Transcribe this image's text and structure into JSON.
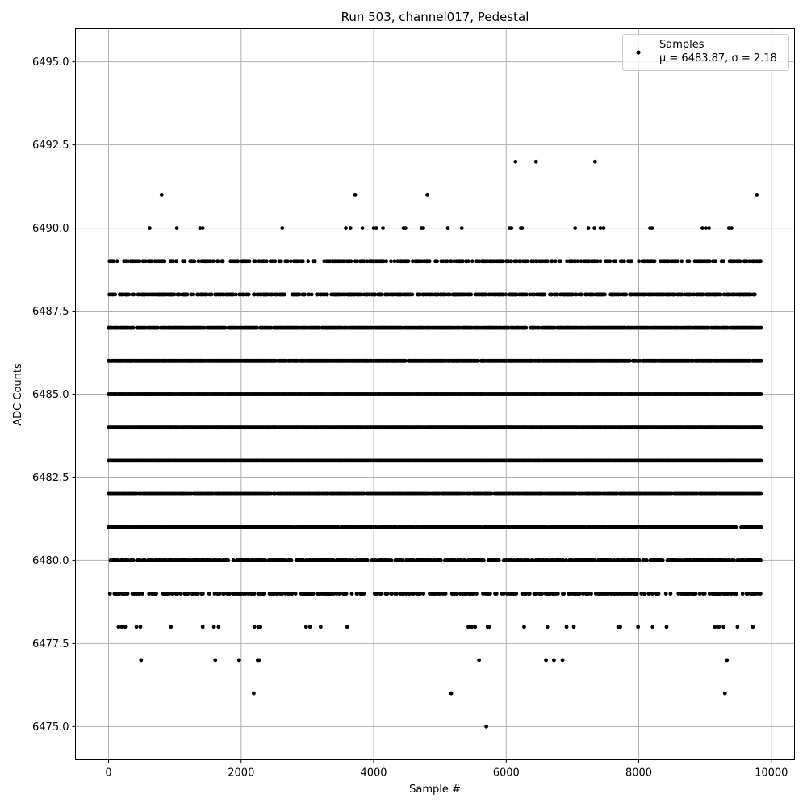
{
  "chart_data": {
    "type": "scatter",
    "title": "Run 503, channel017, Pedestal",
    "xlabel": "Sample #",
    "ylabel": "ADC Counts",
    "xlim": [
      -500,
      10350
    ],
    "ylim": [
      6474.0,
      6496.0
    ],
    "xticks": [
      0,
      2000,
      4000,
      6000,
      8000,
      10000
    ],
    "xtick_labels": [
      "0",
      "2000",
      "4000",
      "6000",
      "8000",
      "10000"
    ],
    "yticks": [
      6475.0,
      6477.5,
      6480.0,
      6482.5,
      6485.0,
      6487.5,
      6490.0,
      6492.5,
      6495.0
    ],
    "ytick_labels": [
      "6475.0",
      "6477.5",
      "6480.0",
      "6482.5",
      "6485.0",
      "6487.5",
      "6490.0",
      "6492.5",
      "6495.0"
    ],
    "grid": true,
    "legend_position": "top-right",
    "marker_color": "#000000",
    "series": [
      {
        "name": "Samples",
        "stats_label": "μ = 6483.87, σ = 2.18",
        "mean": 6483.87,
        "sigma": 2.18,
        "n_samples": 9850,
        "dense_levels": [
          {
            "y": 6479,
            "density": 0.35
          },
          {
            "y": 6480,
            "density": 0.65
          },
          {
            "y": 6481,
            "density": 0.85
          },
          {
            "y": 6482,
            "density": 0.95
          },
          {
            "y": 6483,
            "density": 1.0
          },
          {
            "y": 6484,
            "density": 1.0
          },
          {
            "y": 6485,
            "density": 1.0
          },
          {
            "y": 6486,
            "density": 0.95
          },
          {
            "y": 6487,
            "density": 0.85
          },
          {
            "y": 6488,
            "density": 0.55
          },
          {
            "y": 6489,
            "density": 0.4
          }
        ],
        "sparse_points": [
          [
            370,
            6489
          ],
          [
            620,
            6489
          ],
          [
            650,
            6489
          ],
          [
            800,
            6489
          ],
          [
            820,
            6489
          ],
          [
            1450,
            6489
          ],
          [
            1500,
            6489
          ],
          [
            1530,
            6489
          ],
          [
            1580,
            6489
          ],
          [
            1950,
            6489
          ],
          [
            2010,
            6489
          ],
          [
            2040,
            6489
          ],
          [
            2330,
            6489
          ],
          [
            2700,
            6489
          ],
          [
            2820,
            6489
          ],
          [
            2870,
            6489
          ],
          [
            2930,
            6489
          ],
          [
            3290,
            6489
          ],
          [
            3380,
            6489
          ],
          [
            3450,
            6489
          ],
          [
            3550,
            6489
          ],
          [
            3850,
            6489
          ],
          [
            3900,
            6489
          ],
          [
            3950,
            6489
          ],
          [
            4000,
            6489
          ],
          [
            4120,
            6489
          ],
          [
            4430,
            6489
          ],
          [
            4500,
            6489
          ],
          [
            4630,
            6489
          ],
          [
            4700,
            6489
          ],
          [
            4760,
            6489
          ],
          [
            4820,
            6489
          ],
          [
            4950,
            6489
          ],
          [
            5050,
            6489
          ],
          [
            5170,
            6489
          ],
          [
            5250,
            6489
          ],
          [
            5330,
            6489
          ],
          [
            5490,
            6489
          ],
          [
            5930,
            6489
          ],
          [
            6000,
            6489
          ],
          [
            6080,
            6489
          ],
          [
            6150,
            6489
          ],
          [
            6200,
            6489
          ],
          [
            6260,
            6489
          ],
          [
            6320,
            6489
          ],
          [
            6380,
            6489
          ],
          [
            6450,
            6489
          ],
          [
            6500,
            6489
          ],
          [
            6550,
            6489
          ],
          [
            6600,
            6489
          ],
          [
            6980,
            6489
          ],
          [
            7080,
            6489
          ],
          [
            7180,
            6489
          ],
          [
            7250,
            6489
          ],
          [
            7420,
            6489
          ],
          [
            7520,
            6489
          ],
          [
            7560,
            6489
          ],
          [
            7650,
            6489
          ],
          [
            7780,
            6489
          ],
          [
            7880,
            6489
          ],
          [
            8080,
            6489
          ],
          [
            8130,
            6489
          ],
          [
            8170,
            6489
          ],
          [
            8330,
            6489
          ],
          [
            8390,
            6489
          ],
          [
            8450,
            6489
          ],
          [
            8560,
            6489
          ],
          [
            8910,
            6489
          ],
          [
            8960,
            6489
          ],
          [
            9000,
            6489
          ],
          [
            9070,
            6489
          ],
          [
            9370,
            6489
          ],
          [
            9420,
            6489
          ],
          [
            9530,
            6489
          ],
          [
            9600,
            6489
          ],
          [
            9670,
            6489
          ],
          [
            9730,
            6489
          ],
          [
            9790,
            6489
          ],
          [
            9830,
            6489
          ],
          [
            620,
            6490
          ],
          [
            1030,
            6490
          ],
          [
            1380,
            6490
          ],
          [
            1420,
            6490
          ],
          [
            2620,
            6490
          ],
          [
            3580,
            6490
          ],
          [
            3650,
            6490
          ],
          [
            3830,
            6490
          ],
          [
            4000,
            6490
          ],
          [
            4040,
            6490
          ],
          [
            4140,
            6490
          ],
          [
            4450,
            6490
          ],
          [
            4480,
            6490
          ],
          [
            4720,
            6490
          ],
          [
            4750,
            6490
          ],
          [
            5120,
            6490
          ],
          [
            5330,
            6490
          ],
          [
            6050,
            6490
          ],
          [
            6080,
            6490
          ],
          [
            6220,
            6490
          ],
          [
            6240,
            6490
          ],
          [
            7040,
            6490
          ],
          [
            7240,
            6490
          ],
          [
            7330,
            6490
          ],
          [
            7420,
            6490
          ],
          [
            7470,
            6490
          ],
          [
            8170,
            6490
          ],
          [
            8200,
            6490
          ],
          [
            8960,
            6490
          ],
          [
            9010,
            6490
          ],
          [
            9060,
            6490
          ],
          [
            9360,
            6490
          ],
          [
            9400,
            6490
          ],
          [
            800,
            6491
          ],
          [
            3720,
            6491
          ],
          [
            4810,
            6491
          ],
          [
            9780,
            6491
          ],
          [
            6140,
            6492
          ],
          [
            6450,
            6492
          ],
          [
            7340,
            6492
          ],
          [
            20,
            6479
          ],
          [
            130,
            6479
          ],
          [
            160,
            6479
          ],
          [
            240,
            6479
          ],
          [
            380,
            6479
          ],
          [
            420,
            6479
          ],
          [
            460,
            6479
          ],
          [
            510,
            6479
          ],
          [
            960,
            6479
          ],
          [
            1040,
            6479
          ],
          [
            1160,
            6479
          ],
          [
            1200,
            6479
          ],
          [
            1260,
            6479
          ],
          [
            1320,
            6479
          ],
          [
            1600,
            6479
          ],
          [
            1650,
            6479
          ],
          [
            1920,
            6479
          ],
          [
            1970,
            6479
          ],
          [
            2200,
            6479
          ],
          [
            2280,
            6479
          ],
          [
            2340,
            6479
          ],
          [
            2430,
            6479
          ],
          [
            2480,
            6479
          ],
          [
            2730,
            6479
          ],
          [
            2770,
            6479
          ],
          [
            2960,
            6479
          ],
          [
            3020,
            6479
          ],
          [
            3090,
            6479
          ],
          [
            3150,
            6479
          ],
          [
            3250,
            6479
          ],
          [
            3280,
            6479
          ],
          [
            3370,
            6479
          ],
          [
            3540,
            6479
          ],
          [
            3830,
            6479
          ],
          [
            4200,
            6479
          ],
          [
            4430,
            6479
          ],
          [
            4490,
            6479
          ],
          [
            4540,
            6479
          ],
          [
            4600,
            6479
          ],
          [
            4920,
            6479
          ],
          [
            4980,
            6479
          ],
          [
            5050,
            6479
          ],
          [
            5310,
            6479
          ],
          [
            5400,
            6479
          ],
          [
            5460,
            6479
          ],
          [
            5650,
            6479
          ],
          [
            5690,
            6479
          ],
          [
            6140,
            6479
          ],
          [
            6270,
            6479
          ],
          [
            6440,
            6479
          ],
          [
            6620,
            6479
          ],
          [
            6700,
            6479
          ],
          [
            6780,
            6479
          ],
          [
            6870,
            6479
          ],
          [
            7050,
            6479
          ],
          [
            7160,
            6479
          ],
          [
            7390,
            6479
          ],
          [
            7640,
            6479
          ],
          [
            7760,
            6479
          ],
          [
            7790,
            6479
          ],
          [
            8040,
            6479
          ],
          [
            8090,
            6479
          ],
          [
            8210,
            6479
          ],
          [
            8300,
            6479
          ],
          [
            8410,
            6479
          ],
          [
            8600,
            6479
          ],
          [
            8780,
            6479
          ],
          [
            8850,
            6479
          ],
          [
            9110,
            6479
          ],
          [
            9180,
            6479
          ],
          [
            9220,
            6479
          ],
          [
            9280,
            6479
          ],
          [
            9350,
            6479
          ],
          [
            9730,
            6479
          ],
          [
            150,
            6478
          ],
          [
            200,
            6478
          ],
          [
            250,
            6478
          ],
          [
            420,
            6478
          ],
          [
            480,
            6478
          ],
          [
            940,
            6478
          ],
          [
            1420,
            6478
          ],
          [
            1590,
            6478
          ],
          [
            1660,
            6478
          ],
          [
            2200,
            6478
          ],
          [
            2260,
            6478
          ],
          [
            2290,
            6478
          ],
          [
            2980,
            6478
          ],
          [
            3040,
            6478
          ],
          [
            3200,
            6478
          ],
          [
            3600,
            6478
          ],
          [
            5430,
            6478
          ],
          [
            5480,
            6478
          ],
          [
            5530,
            6478
          ],
          [
            5720,
            6478
          ],
          [
            5740,
            6478
          ],
          [
            6270,
            6478
          ],
          [
            6620,
            6478
          ],
          [
            6910,
            6478
          ],
          [
            7020,
            6478
          ],
          [
            7690,
            6478
          ],
          [
            7720,
            6478
          ],
          [
            7990,
            6478
          ],
          [
            8210,
            6478
          ],
          [
            8420,
            6478
          ],
          [
            9150,
            6478
          ],
          [
            9210,
            6478
          ],
          [
            9280,
            6478
          ],
          [
            9490,
            6478
          ],
          [
            9720,
            6478
          ],
          [
            490,
            6477
          ],
          [
            1610,
            6477
          ],
          [
            1970,
            6477
          ],
          [
            2250,
            6477
          ],
          [
            2270,
            6477
          ],
          [
            5590,
            6477
          ],
          [
            6600,
            6477
          ],
          [
            6720,
            6477
          ],
          [
            6850,
            6477
          ],
          [
            9330,
            6477
          ],
          [
            2190,
            6476
          ],
          [
            5170,
            6476
          ],
          [
            9300,
            6476
          ],
          [
            5700,
            6475
          ]
        ]
      }
    ]
  }
}
